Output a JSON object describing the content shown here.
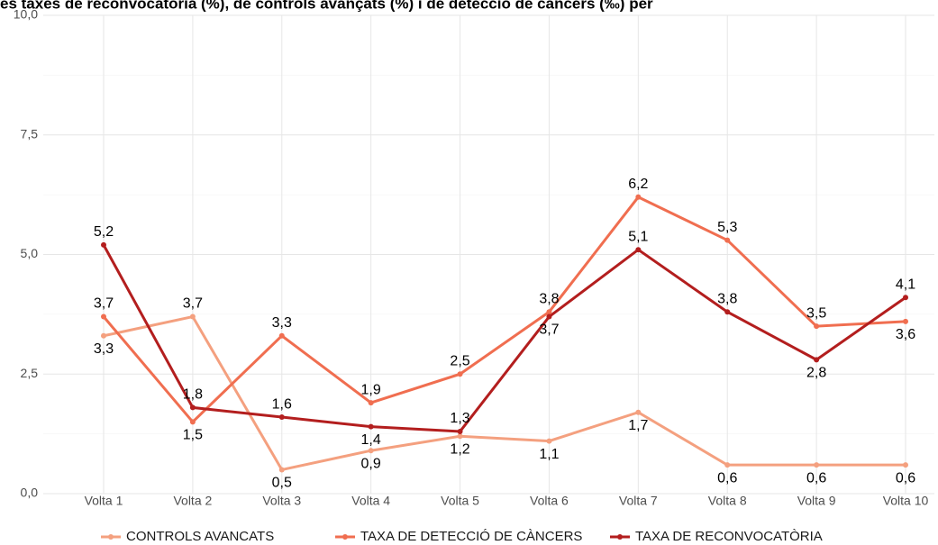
{
  "chart_data": {
    "type": "line",
    "title": "es taxes de reconvocatòria (%), de controls avançats (%) i de detecció de càncers (‰) per",
    "categories": [
      "Volta 1",
      "Volta 2",
      "Volta 3",
      "Volta 4",
      "Volta 5",
      "Volta 6",
      "Volta 7",
      "Volta 8",
      "Volta 9",
      "Volta 10"
    ],
    "series": [
      {
        "name": "CONTROLS AVANCATS",
        "color": "#f4a07f",
        "values": [
          3.3,
          3.7,
          0.5,
          0.9,
          1.2,
          1.1,
          1.7,
          0.6,
          0.6,
          0.6
        ],
        "value_labels": [
          "3,3",
          "3,7",
          "0,5",
          "0,9",
          "1,2",
          "1,1",
          "1,7",
          "0,6",
          "0,6",
          "0,6"
        ]
      },
      {
        "name": "TAXA DE DETECCIÓ DE CÀNCERS",
        "color": "#f06e50",
        "values": [
          3.7,
          1.5,
          3.3,
          1.9,
          2.5,
          3.8,
          6.2,
          5.3,
          3.5,
          3.6
        ],
        "value_labels": [
          "3,7",
          "1,5",
          "3,3",
          "1,9",
          "2,5",
          "3,8",
          "6,2",
          "5,3",
          "3,5",
          "3,6"
        ]
      },
      {
        "name": "TAXA DE RECONVOCATÒRIA",
        "color": "#b31e1e",
        "values": [
          5.2,
          1.8,
          1.6,
          1.4,
          1.3,
          3.7,
          5.1,
          3.8,
          2.8,
          4.1
        ],
        "value_labels": [
          "5,2",
          "1,8",
          "1,6",
          "1,4",
          "1,3",
          "3,7",
          "5,1",
          "3,8",
          "2,8",
          "4,1"
        ]
      }
    ],
    "ylim": [
      0,
      10
    ],
    "yticks": [
      {
        "value": 0,
        "label": "0,0"
      },
      {
        "value": 2.5,
        "label": "2,5"
      },
      {
        "value": 5,
        "label": "5,0"
      },
      {
        "value": 7.5,
        "label": "7,5"
      },
      {
        "value": 10,
        "label": "10,0"
      }
    ],
    "grid": true,
    "legend": "bottom"
  }
}
